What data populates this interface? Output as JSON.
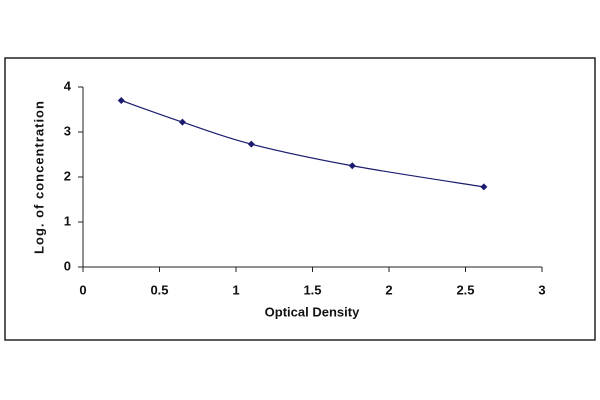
{
  "chart_data": {
    "type": "scatter",
    "x_label": "Optical Density",
    "y_label": "Log. of concentration",
    "x": [
      0.25,
      0.65,
      1.1,
      1.76,
      2.62
    ],
    "values": [
      3.7,
      3.22,
      2.73,
      2.25,
      1.78
    ],
    "color": "#1c1c6e",
    "smooth_line": true,
    "xlim": [
      0,
      3
    ],
    "xticks": [
      0,
      0.5,
      1,
      1.5,
      2,
      2.5,
      3
    ],
    "ylim": [
      0,
      4
    ],
    "yticks": [
      0,
      1,
      2,
      3,
      4
    ],
    "grid": false
  }
}
